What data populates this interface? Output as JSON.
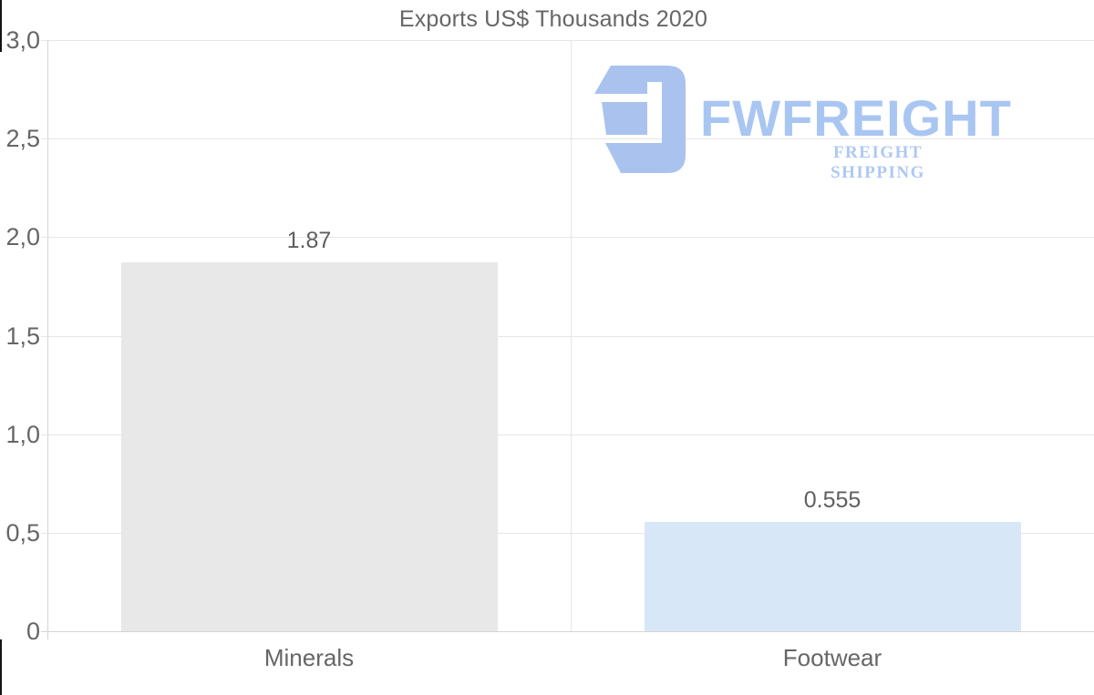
{
  "chart_data": {
    "type": "bar",
    "title": "Exports US$ Thousands 2020",
    "categories": [
      "Minerals",
      "Footwear"
    ],
    "values": [
      1.87,
      0.555
    ],
    "value_labels": [
      "1.87",
      "0.555"
    ],
    "bar_colors": [
      "#e8e8e8",
      "#d8e7f8"
    ],
    "xlabel": "",
    "ylabel": "",
    "ylim": [
      0,
      3
    ],
    "ytick_values": [
      3.0,
      2.5,
      2.0,
      1.5,
      1.0,
      0.5,
      0
    ],
    "ytick_labels": [
      "3,0",
      "2,5",
      "2,0",
      "1,5",
      "1,0",
      "0,5",
      "0"
    ],
    "grid": true,
    "legend": "none"
  },
  "watermark": {
    "brand": "FWFREIGHT",
    "tagline": "FREIGHT SHIPPING",
    "logo_color": "#a9c3ee",
    "brand_color": "#a9c6f2",
    "tagline_color": "#aec8f2"
  },
  "colors": {
    "background": "#ffffff",
    "title": "#666666",
    "axis_label": "#666666",
    "value_label": "#5f5f5f",
    "gridline": "#e6e6e6",
    "axis_line": "#d4d4d4"
  }
}
